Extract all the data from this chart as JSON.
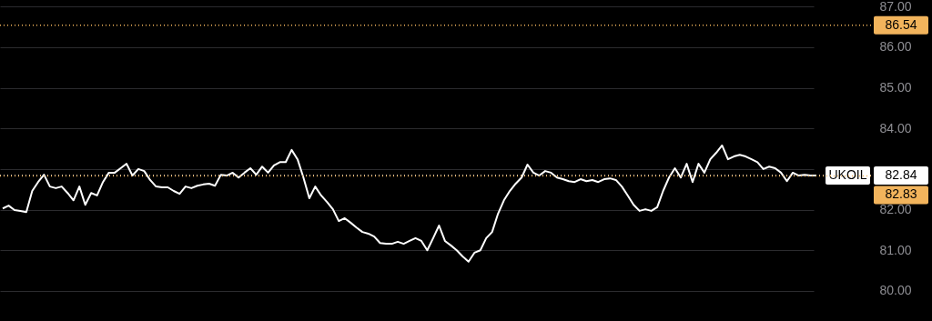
{
  "chart_data": {
    "type": "line",
    "categories": [
      null,
      null,
      null,
      null,
      null,
      null,
      null,
      null,
      null,
      null,
      null,
      null,
      null,
      null,
      null,
      null,
      null,
      null,
      null,
      null,
      null,
      null,
      null,
      null,
      null,
      null,
      null,
      null,
      null,
      null,
      null,
      null,
      null,
      null,
      null,
      null,
      null,
      null,
      null,
      null,
      null,
      null,
      null,
      null,
      null,
      null,
      null,
      null,
      null,
      null,
      null,
      null,
      null,
      null,
      null,
      null,
      null,
      null,
      null,
      null,
      null,
      null,
      null,
      null,
      null,
      null,
      null,
      null,
      null,
      null,
      null,
      null,
      null,
      null,
      null,
      null,
      null,
      null,
      null,
      null,
      null,
      null,
      null,
      null,
      null,
      null,
      null,
      null,
      null,
      null,
      null,
      null,
      null,
      null,
      null,
      null,
      null,
      null,
      null,
      null,
      null,
      null,
      null,
      null,
      null,
      null,
      null,
      null,
      null,
      null,
      null,
      null,
      null,
      null,
      null,
      null,
      null,
      null,
      null,
      null,
      null,
      null,
      null,
      null,
      null,
      null,
      null,
      null,
      null,
      null,
      null,
      null,
      null,
      null,
      null,
      null,
      null,
      null,
      null
    ],
    "series": [
      {
        "name": "UKOIL",
        "color": "#ffffff",
        "values": [
          82.03,
          82.1,
          81.99,
          81.97,
          81.94,
          82.46,
          82.68,
          82.86,
          82.57,
          82.53,
          82.57,
          82.41,
          82.23,
          82.57,
          82.12,
          82.41,
          82.35,
          82.68,
          82.91,
          82.91,
          83.02,
          83.13,
          82.84,
          83.0,
          82.95,
          82.73,
          82.57,
          82.55,
          82.55,
          82.46,
          82.39,
          82.57,
          82.53,
          82.59,
          82.62,
          82.64,
          82.59,
          82.86,
          82.84,
          82.91,
          82.79,
          82.91,
          83.02,
          82.86,
          83.06,
          82.91,
          83.09,
          83.17,
          83.17,
          83.47,
          83.24,
          82.79,
          82.28,
          82.57,
          82.35,
          82.19,
          82.01,
          81.72,
          81.79,
          81.68,
          81.56,
          81.45,
          81.41,
          81.34,
          81.18,
          81.16,
          81.16,
          81.21,
          81.16,
          81.23,
          81.3,
          81.23,
          81.0,
          81.3,
          81.61,
          81.23,
          81.12,
          81.0,
          80.85,
          80.72,
          80.94,
          81.0,
          81.3,
          81.45,
          81.9,
          82.23,
          82.46,
          82.64,
          82.79,
          83.11,
          82.91,
          82.84,
          82.95,
          82.91,
          82.79,
          82.75,
          82.7,
          82.68,
          82.75,
          82.7,
          82.73,
          82.68,
          82.75,
          82.77,
          82.73,
          82.57,
          82.35,
          82.12,
          81.97,
          82.01,
          81.97,
          82.06,
          82.46,
          82.79,
          83.02,
          82.79,
          83.13,
          82.68,
          83.13,
          82.91,
          83.24,
          83.4,
          83.58,
          83.24,
          83.31,
          83.35,
          83.31,
          83.24,
          83.17,
          83.0,
          83.06,
          83.02,
          82.91,
          82.7,
          82.91,
          82.84,
          82.86,
          82.84,
          82.84
        ]
      }
    ],
    "ylim": [
      79.26,
      87.16
    ],
    "yticks": [
      {
        "value": 80,
        "label": "80.00"
      },
      {
        "value": 81,
        "label": "81.00"
      },
      {
        "value": 82,
        "label": "82.00"
      },
      {
        "value": 83,
        "label": null
      },
      {
        "value": 84,
        "label": "84.00"
      },
      {
        "value": 85,
        "label": "85.00"
      },
      {
        "value": 86,
        "label": "86.00"
      },
      {
        "value": 87,
        "label": "87.00"
      }
    ],
    "grid": "y",
    "ref_lines": [
      {
        "axis": "y",
        "value": 86.54,
        "label": "86.54",
        "color": "#f2b45c",
        "line_style": "dotted"
      },
      {
        "axis": "y",
        "value": 82.84,
        "label": "82.84",
        "color": "#ffffff",
        "line_style": "dotted"
      },
      {
        "axis": "y",
        "value": 82.83,
        "label": "82.83",
        "color": "#f2b45c",
        "line_style": "dotted"
      }
    ]
  }
}
